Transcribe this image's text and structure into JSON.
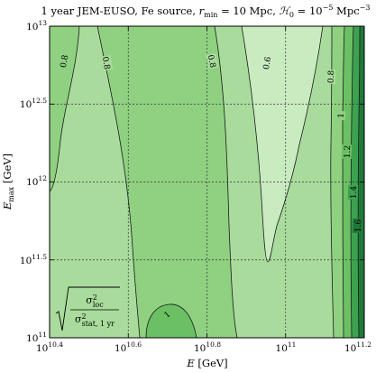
{
  "chart_data": {
    "type": "contour",
    "title": {
      "prefix": "1 year JEM-EUSO, Fe source, ",
      "rmin_sym": "r",
      "rmin_sub": "min",
      "rmin_val": " = 10 Mpc, ",
      "h0_sym": "ℋ",
      "h0_sub": "0",
      "h0_val": " = 10",
      "h0_exp": "−5",
      "h0_unit": " Mpc",
      "h0_unit_exp": "−3"
    },
    "xlabel": {
      "sym": "E",
      "unit": " [GeV]"
    },
    "ylabel": {
      "sym": "E",
      "sub": "max",
      "unit": " [GeV]"
    },
    "x_log10_range": [
      10.4,
      11.2
    ],
    "y_log10_range": [
      11.0,
      13.0
    ],
    "x_ticks": [
      {
        "base": "10",
        "exp": "10.4"
      },
      {
        "base": "10",
        "exp": "10.6"
      },
      {
        "base": "10",
        "exp": "10.8"
      },
      {
        "base": "10",
        "exp": "11"
      },
      {
        "base": "10",
        "exp": "11.2"
      }
    ],
    "y_ticks": [
      {
        "base": "10",
        "exp": "11"
      },
      {
        "base": "10",
        "exp": "11.5"
      },
      {
        "base": "10",
        "exp": "12"
      },
      {
        "base": "10",
        "exp": "12.5"
      },
      {
        "base": "10",
        "exp": "13"
      }
    ],
    "grid": true,
    "contour_levels": [
      "0.6",
      "0.8",
      "0.8",
      "0.8",
      "0.8",
      "1",
      "1",
      "1.2",
      "1.4",
      "1.6"
    ],
    "colorscale": {
      "lowest": "#c9ebc0",
      "low": "#a9dc9c",
      "mid": "#8fd181",
      "high": "#6cc064",
      "higher": "#3da24f",
      "highest": "#1f7a3a"
    },
    "annotation": {
      "num_sym": "σ",
      "num_sup": "2",
      "num_sub": "loc",
      "den_sym": "σ",
      "den_sup": "2",
      "den_sub": "stat, 1 yr"
    }
  }
}
